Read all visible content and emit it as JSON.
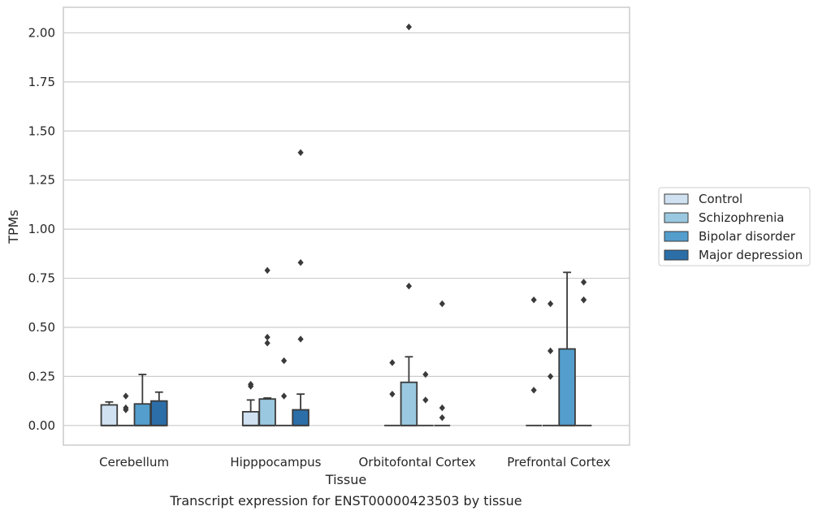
{
  "chart_data": {
    "type": "box",
    "title": "",
    "caption": "Transcript expression for ENST00000423503 by tissue",
    "xlabel": "Tissue",
    "ylabel": "TPMs",
    "ylim": [
      -0.1,
      2.13
    ],
    "yticks": [
      0.0,
      0.25,
      0.5,
      0.75,
      1.0,
      1.25,
      1.5,
      1.75,
      2.0
    ],
    "ytick_labels": [
      "0.00",
      "0.25",
      "0.50",
      "0.75",
      "1.00",
      "1.25",
      "1.50",
      "1.75",
      "2.00"
    ],
    "grid": "horizontal",
    "legend_position": "right",
    "categories": [
      "Cerebellum",
      "Hipppocampus",
      "Orbitofontal Cortex",
      "Prefrontal Cortex"
    ],
    "series": [
      {
        "name": "Control",
        "color": "#d0e1f2",
        "boxes": [
          {
            "q1": 0.0,
            "median": 0.0,
            "q3": 0.105,
            "whisker_low": 0.0,
            "whisker_high": 0.12,
            "outliers": []
          },
          {
            "q1": 0.0,
            "median": 0.0,
            "q3": 0.07,
            "whisker_low": 0.0,
            "whisker_high": 0.13,
            "outliers": [
              0.2,
              0.21
            ]
          },
          {
            "q1": 0.0,
            "median": 0.0,
            "q3": 0.0,
            "whisker_low": 0.0,
            "whisker_high": 0.0,
            "outliers": [
              0.16,
              0.32
            ]
          },
          {
            "q1": 0.0,
            "median": 0.0,
            "q3": 0.0,
            "whisker_low": 0.0,
            "whisker_high": 0.0,
            "outliers": [
              0.18,
              0.64
            ]
          }
        ]
      },
      {
        "name": "Schizophrenia",
        "color": "#9ac8e0",
        "boxes": [
          {
            "q1": 0.0,
            "median": 0.0,
            "q3": 0.0,
            "whisker_low": 0.0,
            "whisker_high": 0.0,
            "outliers": [
              0.08,
              0.09,
              0.15
            ]
          },
          {
            "q1": 0.0,
            "median": 0.0,
            "q3": 0.135,
            "whisker_low": 0.0,
            "whisker_high": 0.14,
            "outliers": [
              0.42,
              0.45,
              0.79
            ]
          },
          {
            "q1": 0.0,
            "median": 0.0,
            "q3": 0.22,
            "whisker_low": 0.0,
            "whisker_high": 0.35,
            "outliers": [
              0.71,
              2.03
            ]
          },
          {
            "q1": 0.0,
            "median": 0.0,
            "q3": 0.0,
            "whisker_low": 0.0,
            "whisker_high": 0.0,
            "outliers": [
              0.25,
              0.38,
              0.62
            ]
          }
        ]
      },
      {
        "name": "Bipolar disorder",
        "color": "#539ecd",
        "boxes": [
          {
            "q1": 0.0,
            "median": 0.0,
            "q3": 0.11,
            "whisker_low": 0.0,
            "whisker_high": 0.26,
            "outliers": []
          },
          {
            "q1": 0.0,
            "median": 0.0,
            "q3": 0.0,
            "whisker_low": 0.0,
            "whisker_high": 0.0,
            "outliers": [
              0.15,
              0.33
            ]
          },
          {
            "q1": 0.0,
            "median": 0.0,
            "q3": 0.0,
            "whisker_low": 0.0,
            "whisker_high": 0.0,
            "outliers": [
              0.13,
              0.26
            ]
          },
          {
            "q1": 0.0,
            "median": 0.0,
            "q3": 0.39,
            "whisker_low": 0.0,
            "whisker_high": 0.78,
            "outliers": []
          }
        ]
      },
      {
        "name": "Major depression",
        "color": "#2b6ea8",
        "boxes": [
          {
            "q1": 0.0,
            "median": 0.0,
            "q3": 0.125,
            "whisker_low": 0.0,
            "whisker_high": 0.17,
            "outliers": []
          },
          {
            "q1": 0.0,
            "median": 0.0,
            "q3": 0.08,
            "whisker_low": 0.0,
            "whisker_high": 0.16,
            "outliers": [
              0.44,
              0.83,
              1.39
            ]
          },
          {
            "q1": 0.0,
            "median": 0.0,
            "q3": 0.0,
            "whisker_low": 0.0,
            "whisker_high": 0.0,
            "outliers": [
              0.04,
              0.09,
              0.62
            ]
          },
          {
            "q1": 0.0,
            "median": 0.0,
            "q3": 0.0,
            "whisker_low": 0.0,
            "whisker_high": 0.0,
            "outliers": [
              0.64,
              0.64,
              0.73
            ]
          }
        ]
      }
    ],
    "colors": {
      "grid": "#cccccc",
      "axis_frame": "#cccccc",
      "box_edge": "#3a3a3a",
      "outlier": "#3a3a3a",
      "text": "#262626"
    }
  }
}
